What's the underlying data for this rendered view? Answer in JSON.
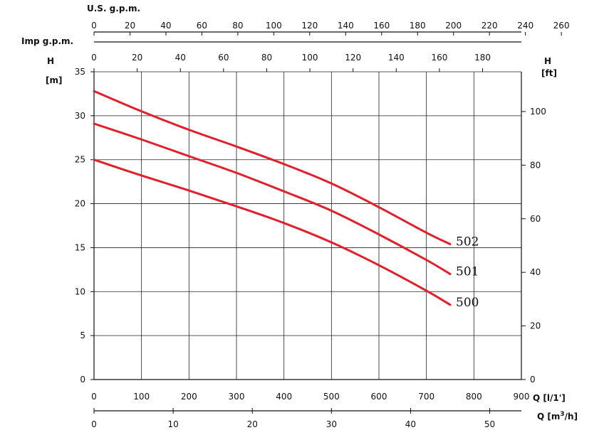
{
  "chart_data": {
    "type": "line",
    "grid": true,
    "x": {
      "label": "Q [l/1']",
      "range": [
        0,
        900
      ],
      "ticks": [
        0,
        100,
        200,
        300,
        400,
        500,
        600,
        700,
        800,
        900
      ]
    },
    "secondary_x_axes": [
      {
        "label": "Q [m³/h]",
        "position": "bottom",
        "ticks": [
          0,
          10,
          20,
          30,
          40,
          50
        ]
      },
      {
        "label": "U.S. g.p.m.",
        "position": "top",
        "ticks": [
          0,
          20,
          40,
          60,
          80,
          100,
          120,
          140,
          160,
          180,
          200,
          220,
          240,
          260
        ]
      },
      {
        "label": "Imp g.p.m.",
        "position": "top",
        "ticks": [
          0,
          20,
          40,
          60,
          80,
          100,
          120,
          140,
          160,
          180
        ]
      }
    ],
    "y": {
      "label": "H [m]",
      "range": [
        0,
        35
      ],
      "ticks": [
        0,
        5,
        10,
        15,
        20,
        25,
        30,
        35
      ]
    },
    "secondary_y_axis": {
      "label": "H [ft]",
      "position": "right",
      "ticks": [
        0,
        20,
        40,
        60,
        80,
        100
      ]
    },
    "series": [
      {
        "name": "502",
        "color": "#e0202a",
        "x": [
          0,
          100,
          200,
          300,
          400,
          500,
          600,
          700,
          750
        ],
        "y": [
          32.8,
          30.5,
          28.4,
          26.5,
          24.5,
          22.3,
          19.6,
          16.7,
          15.4
        ]
      },
      {
        "name": "501",
        "color": "#e0202a",
        "x": [
          0,
          100,
          200,
          300,
          400,
          500,
          600,
          700,
          750
        ],
        "y": [
          29.1,
          27.3,
          25.4,
          23.5,
          21.4,
          19.2,
          16.5,
          13.6,
          12.0
        ]
      },
      {
        "name": "500",
        "color": "#e0202a",
        "x": [
          0,
          100,
          200,
          300,
          400,
          500,
          600,
          700,
          750
        ],
        "y": [
          25.0,
          23.2,
          21.5,
          19.7,
          17.8,
          15.6,
          13.0,
          10.1,
          8.5
        ]
      }
    ]
  }
}
